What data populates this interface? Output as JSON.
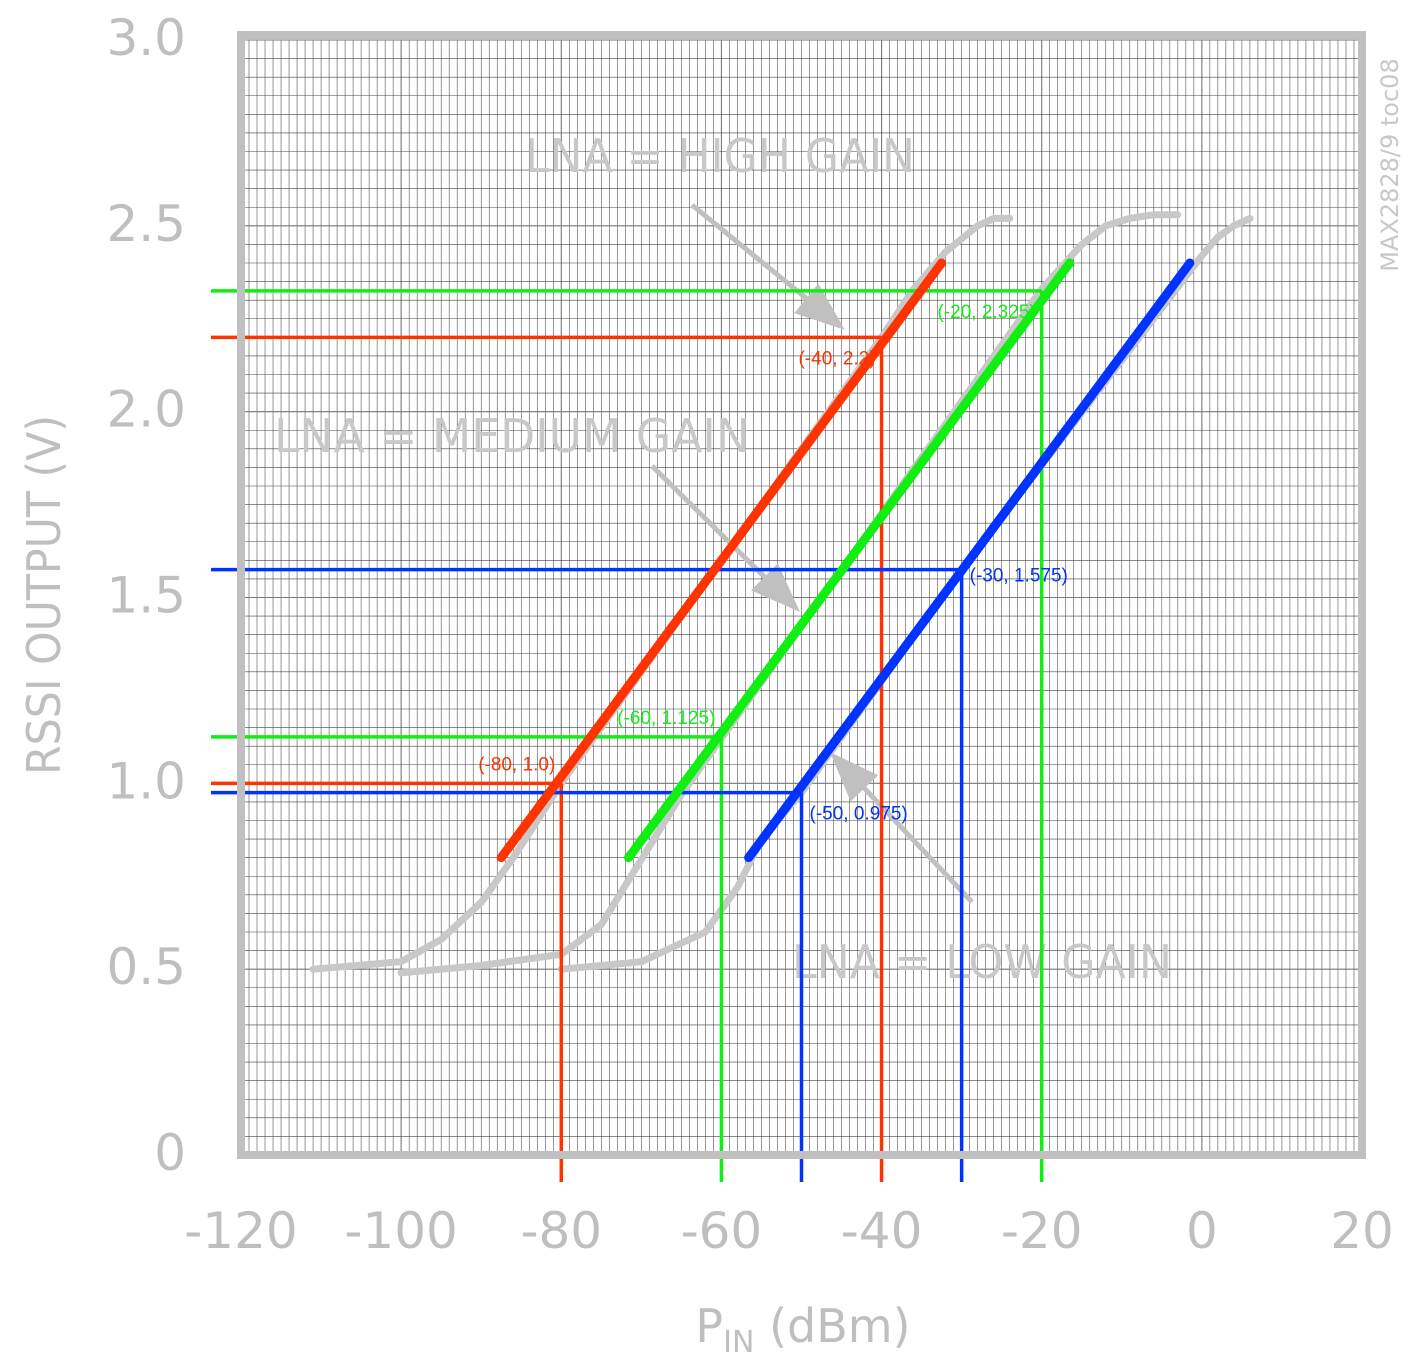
{
  "chart_data": {
    "type": "line",
    "xlabel": "P",
    "xlabel_sub": "IN",
    "xlabel_unit": " (dBm)",
    "ylabel": "RSSI OUTPUT (V)",
    "xlim": [
      -120,
      20
    ],
    "ylim": [
      0,
      3.0
    ],
    "x_ticks": [
      "-120",
      "-100",
      "-80",
      "-60",
      "-40",
      "-20",
      "0",
      "20"
    ],
    "y_ticks": [
      "0",
      "0.5",
      "1.0",
      "1.5",
      "2.0",
      "2.5",
      "3.0"
    ],
    "x_tick_values": [
      -120,
      -100,
      -80,
      -60,
      -40,
      -20,
      0,
      20
    ],
    "y_tick_values": [
      0,
      0.5,
      1.0,
      1.5,
      2.0,
      2.5,
      3.0
    ],
    "grid": true,
    "figure_id": "MAX2828/9 toc08",
    "colors": {
      "high_gain": "#ff3300",
      "medium_gain": "#11ee11",
      "low_gain": "#0033ff",
      "measured_curve": "#c8c8c8",
      "frame": "#c0c0c0"
    },
    "annotations": [
      {
        "text": "LNA = HIGH GAIN"
      },
      {
        "text": "LNA = MEDIUM GAIN"
      },
      {
        "text": "LNA = LOW GAIN"
      }
    ],
    "measured_curves": [
      {
        "x": [
          -111,
          -100,
          -95,
          -90,
          -86,
          -80,
          -40,
          -36,
          -32,
          -28,
          -26,
          -24
        ],
        "y": [
          0.5,
          0.52,
          0.58,
          0.68,
          0.8,
          1.0,
          2.2,
          2.33,
          2.43,
          2.5,
          2.52,
          2.52
        ]
      },
      {
        "x": [
          -100,
          -90,
          -80,
          -75,
          -71,
          -65,
          -20,
          -15,
          -12,
          -9,
          -6,
          -3
        ],
        "y": [
          0.49,
          0.51,
          0.54,
          0.62,
          0.76,
          0.97,
          2.33,
          2.45,
          2.5,
          2.52,
          2.53,
          2.53
        ]
      },
      {
        "x": [
          -80,
          -70,
          -62,
          -58,
          -55,
          -50,
          -30,
          0,
          2,
          4,
          6
        ],
        "y": [
          0.5,
          0.52,
          0.6,
          0.72,
          0.85,
          0.975,
          1.575,
          2.42,
          2.47,
          2.5,
          2.52
        ]
      }
    ],
    "series": [
      {
        "x": [
          -87.5,
          -32.5
        ],
        "y": [
          0.8,
          2.4
        ],
        "color": "#ff3300"
      },
      {
        "x": [
          -71.6,
          -16.5
        ],
        "y": [
          0.8,
          2.4
        ],
        "color": "#11ee11"
      },
      {
        "x": [
          -56.6,
          -1.5
        ],
        "y": [
          0.8,
          2.4
        ],
        "color": "#0033ff"
      }
    ],
    "reference_points": [
      {
        "x": -80,
        "y": 1.0,
        "label": "(-80, 1.0)",
        "color": "#ff3300",
        "label_anchor": "end",
        "label_side": "above"
      },
      {
        "x": -40,
        "y": 2.2,
        "label": "(-40, 2.2)",
        "color": "#ff3300",
        "label_anchor": "end",
        "label_side": "below"
      },
      {
        "x": -60,
        "y": 1.125,
        "label": "(-60, 1.125)",
        "color": "#11ee11",
        "label_anchor": "end",
        "label_side": "above"
      },
      {
        "x": -20,
        "y": 2.325,
        "label": "(-20, 2.325)",
        "color": "#11ee11",
        "label_anchor": "end",
        "label_side": "below"
      },
      {
        "x": -50,
        "y": 0.975,
        "label": "(-50, 0.975)",
        "color": "#0033ff",
        "label_anchor": "start",
        "label_side": "below"
      },
      {
        "x": -30,
        "y": 1.575,
        "label": "(-30, 1.575)",
        "color": "#0033ff",
        "label_anchor": "start",
        "label_side": "center"
      }
    ]
  }
}
